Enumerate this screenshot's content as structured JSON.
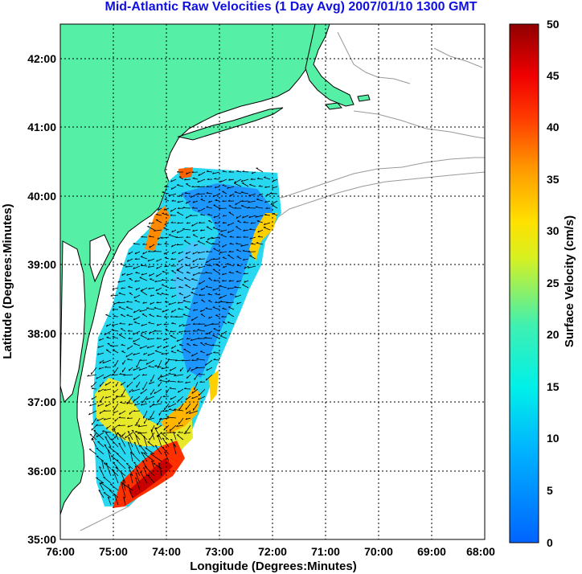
{
  "title": "Mid-Atlantic Raw Velocities (1 Day Avg) 2007/01/10 1300 GMT",
  "axes": {
    "xlabel": "Longitude (Degrees:Minutes)",
    "ylabel": "Latitude (Degrees:Minutes)",
    "x_ticks": [
      "76:00",
      "75:00",
      "74:00",
      "73:00",
      "72:00",
      "71:00",
      "70:00",
      "69:00",
      "68:00"
    ],
    "y_ticks": [
      "42:00",
      "41:00",
      "40:00",
      "39:00",
      "38:00",
      "37:00",
      "36:00",
      "35:00"
    ],
    "x_range": [
      -76,
      -68
    ],
    "y_range": [
      35,
      42.5
    ],
    "grid": true
  },
  "colorbar": {
    "label": "Surface Velocity (cm/s)",
    "ticks": [
      "50",
      "45",
      "40",
      "35",
      "30",
      "25",
      "20",
      "15",
      "10",
      "5",
      "0"
    ],
    "range": [
      0,
      50
    ],
    "colormap": "jet"
  },
  "colors": {
    "land": "#55f0a6",
    "title": "#1010e0",
    "bathymetry": "#999999"
  }
}
